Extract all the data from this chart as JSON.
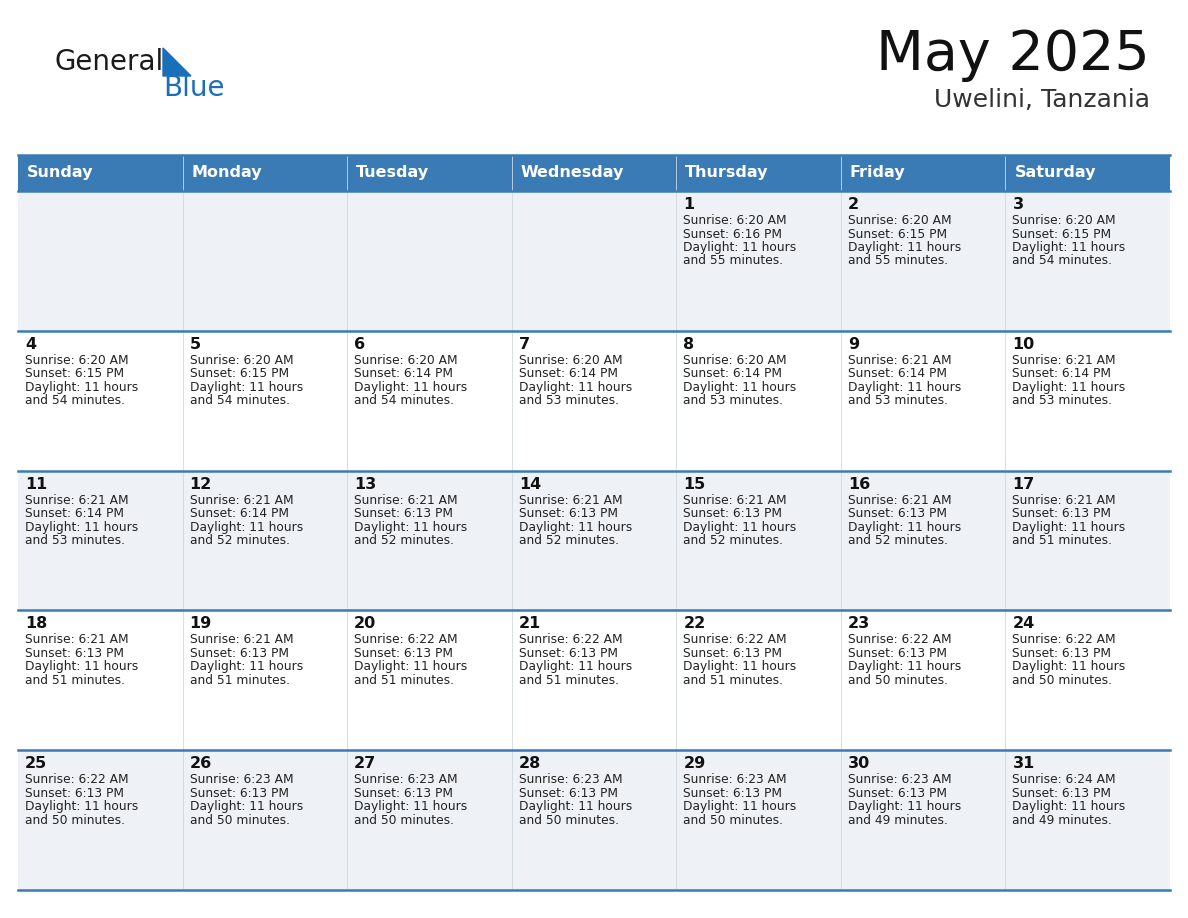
{
  "title": "May 2025",
  "location": "Uwelini, Tanzania",
  "header_bg_color": "#3a7ab5",
  "header_text_color": "#ffffff",
  "row_bg_even": "#eef2f7",
  "row_bg_odd": "#ffffff",
  "border_color": "#3a7ab5",
  "days_of_week": [
    "Sunday",
    "Monday",
    "Tuesday",
    "Wednesday",
    "Thursday",
    "Friday",
    "Saturday"
  ],
  "calendar_data": [
    [
      {
        "day": "",
        "sunrise": "",
        "sunset": "",
        "daylight": ""
      },
      {
        "day": "",
        "sunrise": "",
        "sunset": "",
        "daylight": ""
      },
      {
        "day": "",
        "sunrise": "",
        "sunset": "",
        "daylight": ""
      },
      {
        "day": "",
        "sunrise": "",
        "sunset": "",
        "daylight": ""
      },
      {
        "day": "1",
        "sunrise": "6:20 AM",
        "sunset": "6:16 PM",
        "daylight": "11 hours and 55 minutes."
      },
      {
        "day": "2",
        "sunrise": "6:20 AM",
        "sunset": "6:15 PM",
        "daylight": "11 hours and 55 minutes."
      },
      {
        "day": "3",
        "sunrise": "6:20 AM",
        "sunset": "6:15 PM",
        "daylight": "11 hours and 54 minutes."
      }
    ],
    [
      {
        "day": "4",
        "sunrise": "6:20 AM",
        "sunset": "6:15 PM",
        "daylight": "11 hours and 54 minutes."
      },
      {
        "day": "5",
        "sunrise": "6:20 AM",
        "sunset": "6:15 PM",
        "daylight": "11 hours and 54 minutes."
      },
      {
        "day": "6",
        "sunrise": "6:20 AM",
        "sunset": "6:14 PM",
        "daylight": "11 hours and 54 minutes."
      },
      {
        "day": "7",
        "sunrise": "6:20 AM",
        "sunset": "6:14 PM",
        "daylight": "11 hours and 53 minutes."
      },
      {
        "day": "8",
        "sunrise": "6:20 AM",
        "sunset": "6:14 PM",
        "daylight": "11 hours and 53 minutes."
      },
      {
        "day": "9",
        "sunrise": "6:21 AM",
        "sunset": "6:14 PM",
        "daylight": "11 hours and 53 minutes."
      },
      {
        "day": "10",
        "sunrise": "6:21 AM",
        "sunset": "6:14 PM",
        "daylight": "11 hours and 53 minutes."
      }
    ],
    [
      {
        "day": "11",
        "sunrise": "6:21 AM",
        "sunset": "6:14 PM",
        "daylight": "11 hours and 53 minutes."
      },
      {
        "day": "12",
        "sunrise": "6:21 AM",
        "sunset": "6:14 PM",
        "daylight": "11 hours and 52 minutes."
      },
      {
        "day": "13",
        "sunrise": "6:21 AM",
        "sunset": "6:13 PM",
        "daylight": "11 hours and 52 minutes."
      },
      {
        "day": "14",
        "sunrise": "6:21 AM",
        "sunset": "6:13 PM",
        "daylight": "11 hours and 52 minutes."
      },
      {
        "day": "15",
        "sunrise": "6:21 AM",
        "sunset": "6:13 PM",
        "daylight": "11 hours and 52 minutes."
      },
      {
        "day": "16",
        "sunrise": "6:21 AM",
        "sunset": "6:13 PM",
        "daylight": "11 hours and 52 minutes."
      },
      {
        "day": "17",
        "sunrise": "6:21 AM",
        "sunset": "6:13 PM",
        "daylight": "11 hours and 51 minutes."
      }
    ],
    [
      {
        "day": "18",
        "sunrise": "6:21 AM",
        "sunset": "6:13 PM",
        "daylight": "11 hours and 51 minutes."
      },
      {
        "day": "19",
        "sunrise": "6:21 AM",
        "sunset": "6:13 PM",
        "daylight": "11 hours and 51 minutes."
      },
      {
        "day": "20",
        "sunrise": "6:22 AM",
        "sunset": "6:13 PM",
        "daylight": "11 hours and 51 minutes."
      },
      {
        "day": "21",
        "sunrise": "6:22 AM",
        "sunset": "6:13 PM",
        "daylight": "11 hours and 51 minutes."
      },
      {
        "day": "22",
        "sunrise": "6:22 AM",
        "sunset": "6:13 PM",
        "daylight": "11 hours and 51 minutes."
      },
      {
        "day": "23",
        "sunrise": "6:22 AM",
        "sunset": "6:13 PM",
        "daylight": "11 hours and 50 minutes."
      },
      {
        "day": "24",
        "sunrise": "6:22 AM",
        "sunset": "6:13 PM",
        "daylight": "11 hours and 50 minutes."
      }
    ],
    [
      {
        "day": "25",
        "sunrise": "6:22 AM",
        "sunset": "6:13 PM",
        "daylight": "11 hours and 50 minutes."
      },
      {
        "day": "26",
        "sunrise": "6:23 AM",
        "sunset": "6:13 PM",
        "daylight": "11 hours and 50 minutes."
      },
      {
        "day": "27",
        "sunrise": "6:23 AM",
        "sunset": "6:13 PM",
        "daylight": "11 hours and 50 minutes."
      },
      {
        "day": "28",
        "sunrise": "6:23 AM",
        "sunset": "6:13 PM",
        "daylight": "11 hours and 50 minutes."
      },
      {
        "day": "29",
        "sunrise": "6:23 AM",
        "sunset": "6:13 PM",
        "daylight": "11 hours and 50 minutes."
      },
      {
        "day": "30",
        "sunrise": "6:23 AM",
        "sunset": "6:13 PM",
        "daylight": "11 hours and 49 minutes."
      },
      {
        "day": "31",
        "sunrise": "6:24 AM",
        "sunset": "6:13 PM",
        "daylight": "11 hours and 49 minutes."
      }
    ]
  ],
  "logo_general_color": "#1a1a1a",
  "logo_blue_color": "#1a6fba",
  "logo_triangle_color": "#1a6fba",
  "fig_width": 11.88,
  "fig_height": 9.18,
  "dpi": 100
}
